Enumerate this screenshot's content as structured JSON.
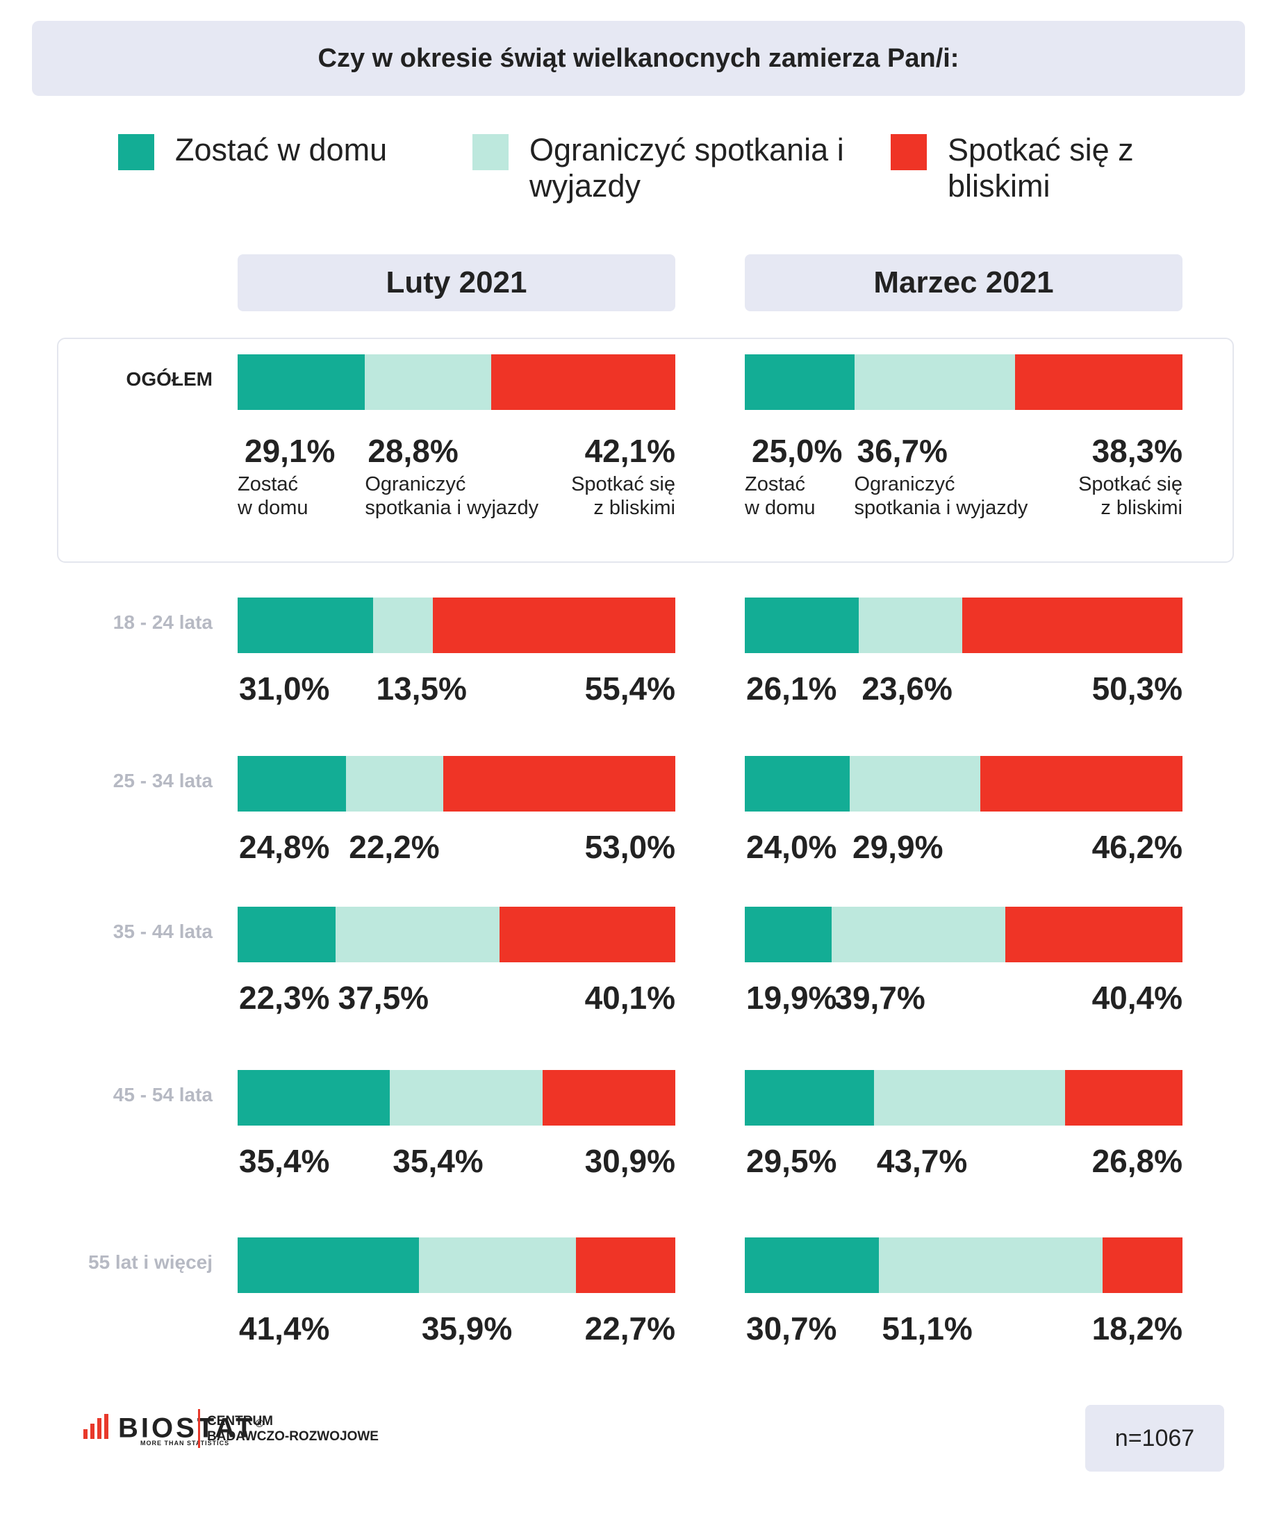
{
  "title": "Czy w okresie świąt wielkanocnych zamierza Pan/i:",
  "legend": [
    {
      "label": "Zostać w domu",
      "color": "#13ad95"
    },
    {
      "label": "Ograniczyć spotkania i wyjazdy",
      "color": "#bde8dd"
    },
    {
      "label": "Spotkać się z bliskimi",
      "color": "#ef3426"
    }
  ],
  "periods": [
    "Luty 2021",
    "Marzec 2021"
  ],
  "overall_sublabels": [
    "Zostać\nw domu",
    "Ograniczyć\nspotkania i wyjazdy",
    "Spotkać się\nz bliskimi"
  ],
  "chart_data": {
    "type": "bar",
    "stacked": true,
    "orientation": "horizontal",
    "normalized": "percent",
    "title": "Czy w okresie świąt wielkanocnych zamierza Pan/i:",
    "categories": [
      "OGÓŁEM",
      "18 - 24 lata",
      "25 - 34 lata",
      "35 - 44 lata",
      "45 - 54 lata",
      "55 lat i więcej"
    ],
    "panels": [
      {
        "name": "Luty 2021",
        "series": [
          {
            "name": "Zostać w domu",
            "values": [
              29.1,
              31.0,
              24.8,
              22.3,
              35.4,
              41.4
            ],
            "labels": [
              "29,1%",
              "31,0%",
              "24,8%",
              "22,3%",
              "35,4%",
              "41,4%"
            ]
          },
          {
            "name": "Ograniczyć spotkania i wyjazdy",
            "values": [
              28.8,
              13.5,
              22.2,
              37.5,
              35.4,
              35.9
            ],
            "labels": [
              "28,8%",
              "13,5%",
              "22,2%",
              "37,5%",
              "35,4%",
              "35,9%"
            ]
          },
          {
            "name": "Spotkać się z bliskimi",
            "values": [
              42.1,
              55.4,
              53.0,
              40.1,
              30.9,
              22.7
            ],
            "labels": [
              "42,1%",
              "55,4%",
              "53,0%",
              "40,1%",
              "30,9%",
              "22,7%"
            ]
          }
        ]
      },
      {
        "name": "Marzec 2021",
        "series": [
          {
            "name": "Zostać w domu",
            "values": [
              25.0,
              26.1,
              24.0,
              19.9,
              29.5,
              30.7
            ],
            "labels": [
              "25,0%",
              "26,1%",
              "24,0%",
              "19,9%",
              "29,5%",
              "30,7%"
            ]
          },
          {
            "name": "Ograniczyć spotkania i wyjazdy",
            "values": [
              36.7,
              23.6,
              29.9,
              39.7,
              43.7,
              51.1
            ],
            "labels": [
              "36,7%",
              "23,6%",
              "29,9%",
              "39,7%",
              "43,7%",
              "51,1%"
            ]
          },
          {
            "name": "Spotkać się z bliskimi",
            "values": [
              38.3,
              50.3,
              46.2,
              40.4,
              26.8,
              18.2
            ],
            "labels": [
              "38,3%",
              "50,3%",
              "46,2%",
              "40,4%",
              "26,8%",
              "18,2%"
            ]
          }
        ]
      }
    ],
    "xlim": [
      0,
      100
    ],
    "grid": false,
    "legend_position": "top"
  },
  "footer": {
    "brand": "BIOSTAT",
    "brand_mark": "®",
    "tagline": "MORE THAN STATISTICS",
    "division_line1": "CENTRUM",
    "division_line2": "BADAWCZO-ROZWOJOWE",
    "sample": "n=1067"
  }
}
